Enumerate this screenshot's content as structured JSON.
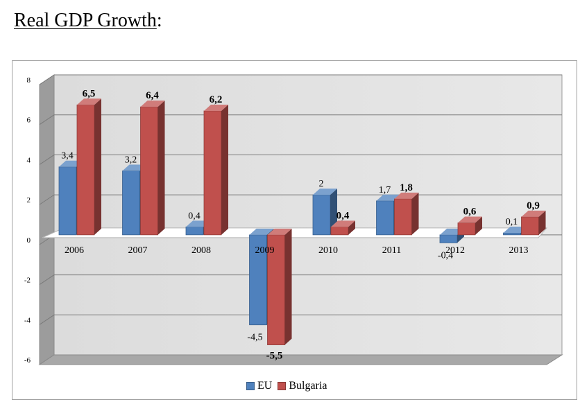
{
  "title": {
    "text": "Real GDP Growth",
    "suffix": ":"
  },
  "chart_data": {
    "type": "bar",
    "categories": [
      "2006",
      "2007",
      "2008",
      "2009",
      "2010",
      "2011",
      "2012",
      "2013"
    ],
    "series": [
      {
        "name": "EU",
        "values": [
          3.4,
          3.2,
          0.4,
          -4.5,
          2,
          1.7,
          -0.4,
          0.1
        ],
        "labels": [
          "3,4",
          "3,2",
          "0,4",
          "-4,5",
          "2",
          "1,7",
          "-0,4",
          "0,1"
        ],
        "color": "#4f81bd"
      },
      {
        "name": "Bulgaria",
        "values": [
          6.5,
          6.4,
          6.2,
          -5.5,
          0.4,
          1.8,
          0.6,
          0.9
        ],
        "labels": [
          "6,5",
          "6,4",
          "6,2",
          "-5,5",
          "0,4",
          "1,8",
          "0,6",
          "0,9"
        ],
        "color": "#c0504d"
      }
    ],
    "ylim": [
      -6,
      8
    ],
    "yticks": [
      -6,
      -4,
      -2,
      0,
      2,
      4,
      6,
      8
    ],
    "grid": true,
    "legend": "bottom",
    "three_d": true
  }
}
